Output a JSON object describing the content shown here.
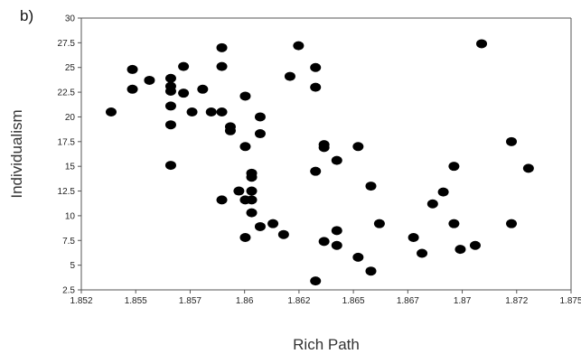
{
  "panel_label": "b)",
  "chart_data": {
    "type": "scatter",
    "title": "",
    "xlabel": "Rich Path",
    "ylabel": "Individualism",
    "xlim": [
      1.852,
      1.875
    ],
    "ylim": [
      2.5,
      30
    ],
    "x_tick_labels": [
      "1.852",
      "1.855",
      "1.857",
      "1.86",
      "1.862",
      "1.865",
      "1.867",
      "1.87",
      "1.872",
      "1.875"
    ],
    "y_tick_labels": [
      "2.5",
      "5",
      "7.5",
      "10",
      "12.5",
      "15",
      "17.5",
      "20",
      "22.5",
      "25",
      "27.5",
      "30"
    ],
    "grid": false,
    "marker_color": "#000000",
    "points": [
      {
        "x": 1.8534,
        "y": 20.5
      },
      {
        "x": 1.8544,
        "y": 24.8
      },
      {
        "x": 1.8544,
        "y": 22.8
      },
      {
        "x": 1.8552,
        "y": 23.7
      },
      {
        "x": 1.8562,
        "y": 23.9
      },
      {
        "x": 1.8562,
        "y": 23.1
      },
      {
        "x": 1.8562,
        "y": 22.6
      },
      {
        "x": 1.8562,
        "y": 21.1
      },
      {
        "x": 1.8562,
        "y": 19.2
      },
      {
        "x": 1.8562,
        "y": 15.1
      },
      {
        "x": 1.8568,
        "y": 25.1
      },
      {
        "x": 1.8568,
        "y": 22.4
      },
      {
        "x": 1.8572,
        "y": 20.5
      },
      {
        "x": 1.8577,
        "y": 22.8
      },
      {
        "x": 1.8581,
        "y": 20.5
      },
      {
        "x": 1.8586,
        "y": 27.0
      },
      {
        "x": 1.8586,
        "y": 25.1
      },
      {
        "x": 1.8586,
        "y": 20.5
      },
      {
        "x": 1.8586,
        "y": 11.6
      },
      {
        "x": 1.859,
        "y": 19.0
      },
      {
        "x": 1.859,
        "y": 18.6
      },
      {
        "x": 1.8594,
        "y": 12.5
      },
      {
        "x": 1.8597,
        "y": 22.1
      },
      {
        "x": 1.8597,
        "y": 17.0
      },
      {
        "x": 1.8597,
        "y": 11.6
      },
      {
        "x": 1.8597,
        "y": 7.8
      },
      {
        "x": 1.86,
        "y": 14.3
      },
      {
        "x": 1.86,
        "y": 13.9
      },
      {
        "x": 1.86,
        "y": 12.5
      },
      {
        "x": 1.86,
        "y": 11.6
      },
      {
        "x": 1.86,
        "y": 10.3
      },
      {
        "x": 1.8604,
        "y": 20.0
      },
      {
        "x": 1.8604,
        "y": 18.3
      },
      {
        "x": 1.8604,
        "y": 8.9
      },
      {
        "x": 1.861,
        "y": 9.2
      },
      {
        "x": 1.8615,
        "y": 8.1
      },
      {
        "x": 1.8618,
        "y": 24.1
      },
      {
        "x": 1.8622,
        "y": 27.2
      },
      {
        "x": 1.863,
        "y": 25.0
      },
      {
        "x": 1.863,
        "y": 23.0
      },
      {
        "x": 1.863,
        "y": 14.5
      },
      {
        "x": 1.863,
        "y": 3.4
      },
      {
        "x": 1.8634,
        "y": 17.2
      },
      {
        "x": 1.8634,
        "y": 16.9
      },
      {
        "x": 1.8634,
        "y": 7.4
      },
      {
        "x": 1.864,
        "y": 15.6
      },
      {
        "x": 1.864,
        "y": 8.5
      },
      {
        "x": 1.864,
        "y": 7.0
      },
      {
        "x": 1.865,
        "y": 17.0
      },
      {
        "x": 1.865,
        "y": 5.8
      },
      {
        "x": 1.8656,
        "y": 13.0
      },
      {
        "x": 1.8656,
        "y": 4.4
      },
      {
        "x": 1.866,
        "y": 9.2
      },
      {
        "x": 1.8676,
        "y": 7.8
      },
      {
        "x": 1.868,
        "y": 6.2
      },
      {
        "x": 1.8685,
        "y": 11.2
      },
      {
        "x": 1.869,
        "y": 12.4
      },
      {
        "x": 1.8695,
        "y": 15.0
      },
      {
        "x": 1.8695,
        "y": 9.2
      },
      {
        "x": 1.8698,
        "y": 6.6
      },
      {
        "x": 1.8705,
        "y": 7.0
      },
      {
        "x": 1.8708,
        "y": 27.4
      },
      {
        "x": 1.8722,
        "y": 17.5
      },
      {
        "x": 1.8722,
        "y": 9.2
      },
      {
        "x": 1.873,
        "y": 14.8
      }
    ]
  }
}
